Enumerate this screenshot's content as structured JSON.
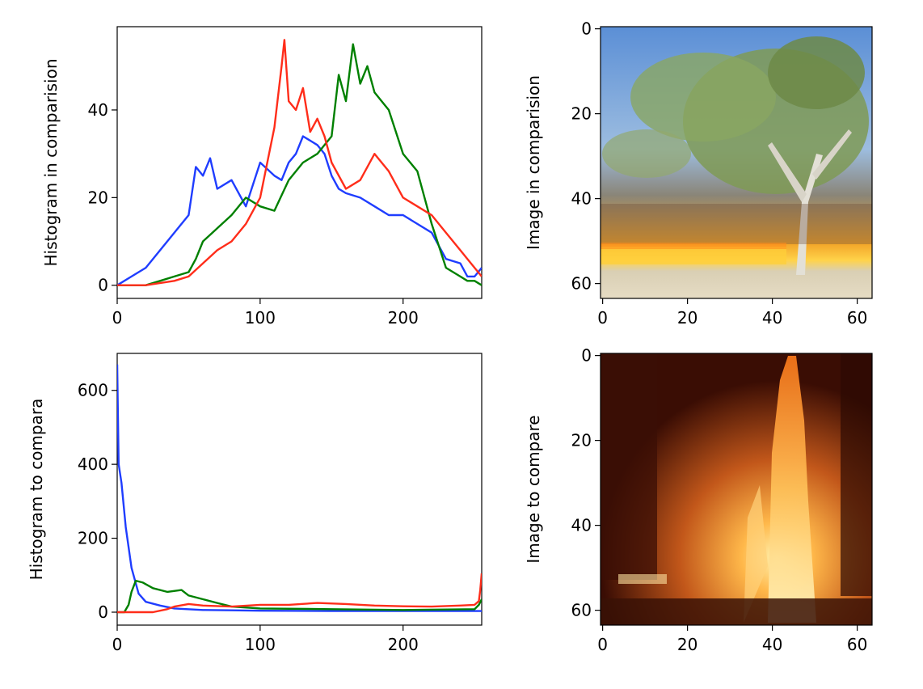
{
  "chart_data": [
    {
      "type": "line",
      "ylabel": "Histogram in comparision",
      "xlim": [
        0,
        255
      ],
      "ylim": [
        -3,
        59
      ],
      "xticks": [
        0,
        100,
        200
      ],
      "yticks": [
        0,
        20,
        40
      ],
      "series": [
        {
          "color": "#1f3dff",
          "x": [
            0,
            10,
            20,
            30,
            40,
            50,
            55,
            60,
            65,
            70,
            80,
            90,
            100,
            110,
            115,
            120,
            125,
            130,
            135,
            140,
            145,
            150,
            155,
            160,
            170,
            180,
            190,
            200,
            210,
            220,
            230,
            240,
            245,
            250,
            255
          ],
          "values": [
            0,
            2,
            4,
            8,
            12,
            16,
            27,
            25,
            29,
            22,
            24,
            18,
            28,
            25,
            24,
            28,
            30,
            34,
            33,
            32,
            30,
            25,
            22,
            21,
            20,
            18,
            16,
            16,
            14,
            12,
            6,
            5,
            2,
            2,
            4
          ]
        },
        {
          "color": "#008000",
          "x": [
            0,
            20,
            30,
            40,
            50,
            55,
            60,
            70,
            80,
            90,
            100,
            110,
            120,
            130,
            140,
            150,
            155,
            160,
            165,
            170,
            175,
            180,
            190,
            200,
            210,
            220,
            230,
            240,
            245,
            250,
            255
          ],
          "values": [
            0,
            0,
            1,
            2,
            3,
            6,
            10,
            13,
            16,
            20,
            18,
            17,
            24,
            28,
            30,
            34,
            48,
            42,
            55,
            46,
            50,
            44,
            40,
            30,
            26,
            14,
            4,
            2,
            1,
            1,
            0
          ]
        },
        {
          "color": "#ff2d1a",
          "x": [
            0,
            20,
            40,
            50,
            60,
            70,
            80,
            90,
            100,
            105,
            110,
            115,
            117,
            120,
            125,
            130,
            135,
            140,
            145,
            150,
            160,
            170,
            180,
            190,
            200,
            210,
            220,
            230,
            240,
            245,
            250,
            255
          ],
          "values": [
            0,
            0,
            1,
            2,
            5,
            8,
            10,
            14,
            20,
            28,
            36,
            50,
            56,
            42,
            40,
            45,
            35,
            38,
            34,
            28,
            22,
            24,
            30,
            26,
            20,
            18,
            16,
            12,
            8,
            6,
            4,
            2
          ]
        }
      ]
    },
    {
      "type": "image",
      "ylabel": "Image in comparision",
      "xticks": [
        0,
        20,
        40,
        60
      ],
      "yticks": [
        0,
        20,
        40,
        60
      ]
    },
    {
      "type": "line",
      "ylabel": "Histogram to compara",
      "xlim": [
        0,
        255
      ],
      "ylim": [
        -35,
        700
      ],
      "xticks": [
        0,
        100,
        200
      ],
      "yticks": [
        0,
        200,
        400,
        600
      ],
      "series": [
        {
          "color": "#1f3dff",
          "x": [
            0,
            1,
            3,
            6,
            10,
            15,
            20,
            30,
            40,
            60,
            80,
            100,
            150,
            200,
            250,
            255
          ],
          "values": [
            670,
            400,
            350,
            230,
            120,
            50,
            28,
            18,
            10,
            6,
            5,
            4,
            3,
            3,
            3,
            3
          ]
        },
        {
          "color": "#008000",
          "x": [
            0,
            5,
            8,
            10,
            13,
            18,
            25,
            35,
            45,
            50,
            60,
            70,
            80,
            100,
            150,
            200,
            250,
            253,
            255
          ],
          "values": [
            0,
            0,
            20,
            55,
            85,
            80,
            65,
            55,
            60,
            45,
            35,
            25,
            15,
            10,
            8,
            6,
            8,
            20,
            35
          ]
        },
        {
          "color": "#ff2d1a",
          "x": [
            0,
            25,
            35,
            40,
            50,
            60,
            80,
            100,
            120,
            140,
            160,
            180,
            200,
            220,
            240,
            250,
            253,
            254,
            255
          ],
          "values": [
            0,
            0,
            8,
            15,
            22,
            18,
            15,
            20,
            20,
            25,
            22,
            18,
            16,
            15,
            18,
            20,
            30,
            60,
            105
          ]
        }
      ]
    },
    {
      "type": "image",
      "ylabel": "Image to compare",
      "xticks": [
        0,
        20,
        40,
        60
      ],
      "yticks": [
        0,
        20,
        40,
        60
      ]
    }
  ]
}
